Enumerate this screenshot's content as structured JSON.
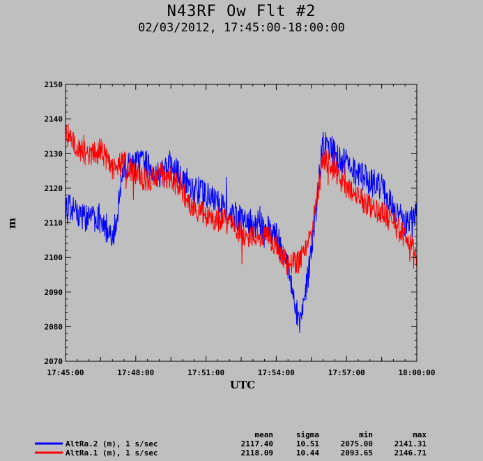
{
  "title": "N43RF Ow Flt #2",
  "subtitle": "02/03/2012, 17:45:00-18:00:00",
  "chart_data": {
    "type": "line",
    "xlabel": "UTC",
    "ylabel": "m",
    "xlim": [
      "17:45:00",
      "18:00:00"
    ],
    "ylim": [
      2070,
      2150
    ],
    "x_ticks": [
      "17:45:00",
      "17:48:00",
      "17:51:00",
      "17:54:00",
      "17:57:00",
      "18:00:00"
    ],
    "y_ticks": [
      2070,
      2080,
      2090,
      2100,
      2110,
      2120,
      2130,
      2140,
      2150
    ],
    "grid": false,
    "stats_headers": [
      "mean",
      "sigma",
      "min",
      "max"
    ],
    "series": [
      {
        "name": "AltRa.2 (m), 1 s/sec",
        "color": "#0000ff",
        "mean": "2117.40",
        "sigma": "10.51",
        "min": "2075.00",
        "max": "2141.31",
        "x": [
          "17:45:00",
          "17:45:30",
          "17:46:00",
          "17:46:30",
          "17:47:00",
          "17:47:30",
          "17:48:00",
          "17:48:30",
          "17:49:00",
          "17:49:30",
          "17:50:00",
          "17:50:30",
          "17:51:00",
          "17:51:30",
          "17:52:00",
          "17:52:30",
          "17:53:00",
          "17:53:30",
          "17:54:00",
          "17:54:30",
          "17:55:00",
          "17:55:30",
          "17:56:00",
          "17:56:30",
          "17:57:00",
          "17:57:30",
          "17:58:00",
          "17:58:30",
          "17:59:00",
          "17:59:30",
          "18:00:00"
        ],
        "y": [
          2115,
          2113,
          2111,
          2112,
          2104,
          2126,
          2127,
          2127,
          2124,
          2126,
          2123,
          2120,
          2118,
          2116,
          2113,
          2111,
          2110,
          2109,
          2106,
          2098,
          2080,
          2101,
          2134,
          2130,
          2127,
          2124,
          2122,
          2120,
          2114,
          2110,
          2113
        ]
      },
      {
        "name": "AltRa.1 (m), 1 s/sec",
        "color": "#ff0000",
        "mean": "2118.09",
        "sigma": "10.44",
        "min": "2093.65",
        "max": "2146.71",
        "x": [
          "17:45:00",
          "17:45:30",
          "17:46:00",
          "17:46:30",
          "17:47:00",
          "17:47:30",
          "17:48:00",
          "17:48:30",
          "17:49:00",
          "17:49:30",
          "17:50:00",
          "17:50:30",
          "17:51:00",
          "17:51:30",
          "17:52:00",
          "17:52:30",
          "17:53:00",
          "17:53:30",
          "17:54:00",
          "17:54:30",
          "17:55:00",
          "17:55:30",
          "17:56:00",
          "17:56:30",
          "17:57:00",
          "17:57:30",
          "17:58:00",
          "17:58:30",
          "17:59:00",
          "17:59:30",
          "18:00:00"
        ],
        "y": [
          2136,
          2132,
          2129,
          2131,
          2126,
          2127,
          2124,
          2122,
          2124,
          2123,
          2119,
          2114,
          2112,
          2111,
          2110,
          2107,
          2106,
          2107,
          2103,
          2098,
          2099,
          2106,
          2129,
          2125,
          2120,
          2117,
          2115,
          2113,
          2110,
          2106,
          2100
        ]
      }
    ]
  }
}
